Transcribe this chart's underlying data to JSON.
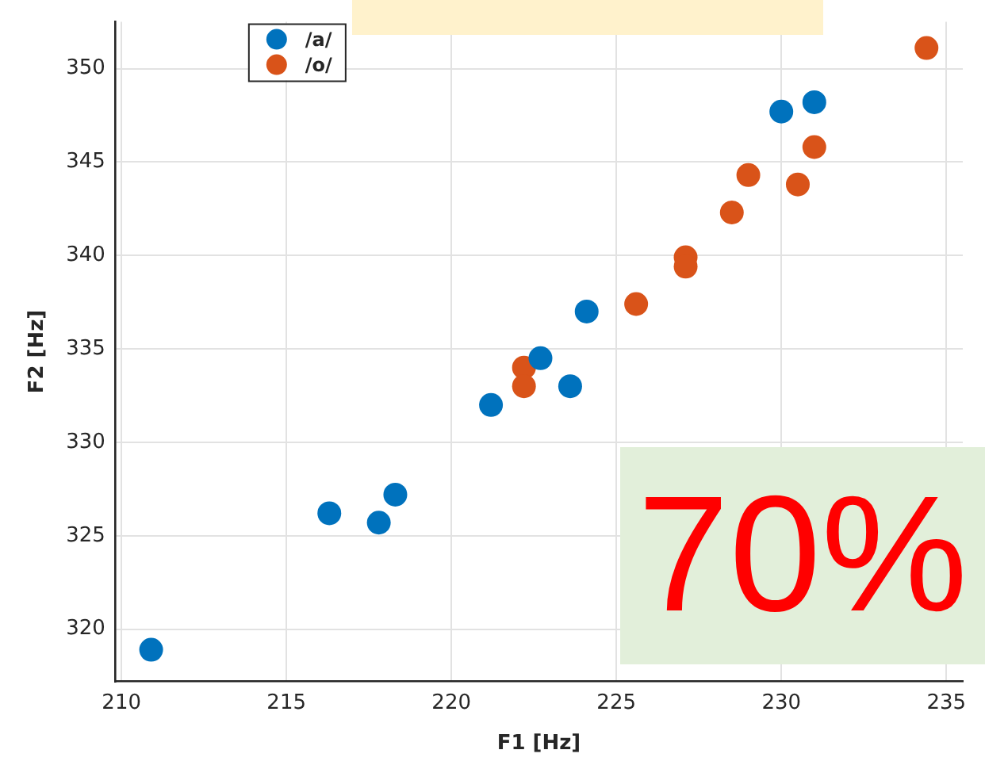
{
  "chart_data": {
    "type": "scatter",
    "xlabel": "F1 [Hz]",
    "ylabel": "F2 [Hz]",
    "annotations": [
      "70%"
    ],
    "series": [
      {
        "name": "/a/",
        "color": "#0072bd",
        "x": [
          210.9,
          216.3,
          217.8,
          218.3,
          221.2,
          222.7,
          223.6,
          224.1,
          230.0,
          231.0
        ],
        "values": [
          318.9,
          326.2,
          325.7,
          327.2,
          332.0,
          334.5,
          333.0,
          337.0,
          347.7,
          348.2
        ]
      },
      {
        "name": "/o/",
        "color": "#d95319",
        "x": [
          222.2,
          222.2,
          225.6,
          227.1,
          227.1,
          228.5,
          229.0,
          230.5,
          231.0,
          234.4
        ],
        "values": [
          334.0,
          333.0,
          337.4,
          339.9,
          339.4,
          342.3,
          344.3,
          343.8,
          345.8,
          351.1
        ]
      }
    ],
    "xlim": [
      209.8,
      235.5
    ],
    "xticks": [
      210,
      215,
      220,
      225,
      230,
      235
    ],
    "ylim": [
      317.2,
      352.5
    ],
    "yticks": [
      320,
      325,
      330,
      335,
      340,
      345,
      350
    ],
    "grid": true,
    "legend": "top left",
    "marker": "circle"
  }
}
